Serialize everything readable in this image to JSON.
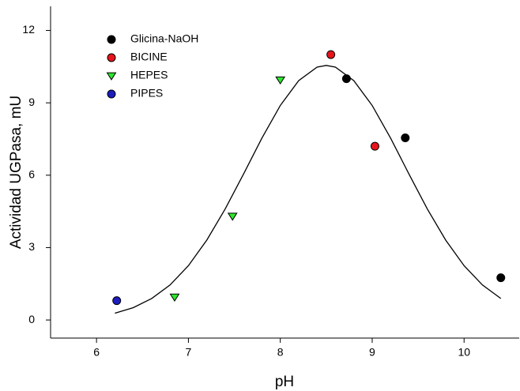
{
  "chart_data": {
    "type": "scatter",
    "x_label": "pH",
    "y_label": "Actividad UGPasa, mU",
    "xlim": [
      5.5,
      10.6
    ],
    "ylim": [
      -0.75,
      13
    ],
    "xticks": [
      6,
      7,
      8,
      9,
      10
    ],
    "yticks": [
      0,
      3,
      6,
      9,
      12
    ],
    "legend": "upper-left",
    "series": [
      {
        "name": "Glicina-NaOH",
        "color": "#000000",
        "marker": "circle",
        "x": [
          8.72,
          9.36,
          10.4
        ],
        "values": [
          10.0,
          7.55,
          1.75
        ]
      },
      {
        "name": "BICINE",
        "color": "#e8141c",
        "marker": "circle",
        "x": [
          8.55,
          9.03
        ],
        "values": [
          11.0,
          7.2
        ]
      },
      {
        "name": "HEPES",
        "color": "#2ee62e",
        "marker": "triangle-down",
        "x": [
          6.85,
          7.48,
          8.0
        ],
        "values": [
          0.95,
          4.3,
          9.95
        ]
      },
      {
        "name": "PIPES",
        "color": "#1c1cbf",
        "marker": "circle",
        "x": [
          6.22
        ],
        "values": [
          0.8
        ]
      },
      {
        "color": "#000000",
        "style": "line",
        "x": [
          6.2,
          6.4,
          6.6,
          6.8,
          7.0,
          7.2,
          7.4,
          7.6,
          7.8,
          8.0,
          8.2,
          8.4,
          8.5,
          8.6,
          8.8,
          9.0,
          9.2,
          9.4,
          9.6,
          9.8,
          10.0,
          10.2,
          10.4
        ],
        "values": [
          0.28,
          0.51,
          0.89,
          1.45,
          2.25,
          3.31,
          4.6,
          6.05,
          7.54,
          8.89,
          9.92,
          10.48,
          10.55,
          10.48,
          9.92,
          8.89,
          7.54,
          6.05,
          4.6,
          3.31,
          2.25,
          1.45,
          0.89
        ]
      }
    ]
  }
}
